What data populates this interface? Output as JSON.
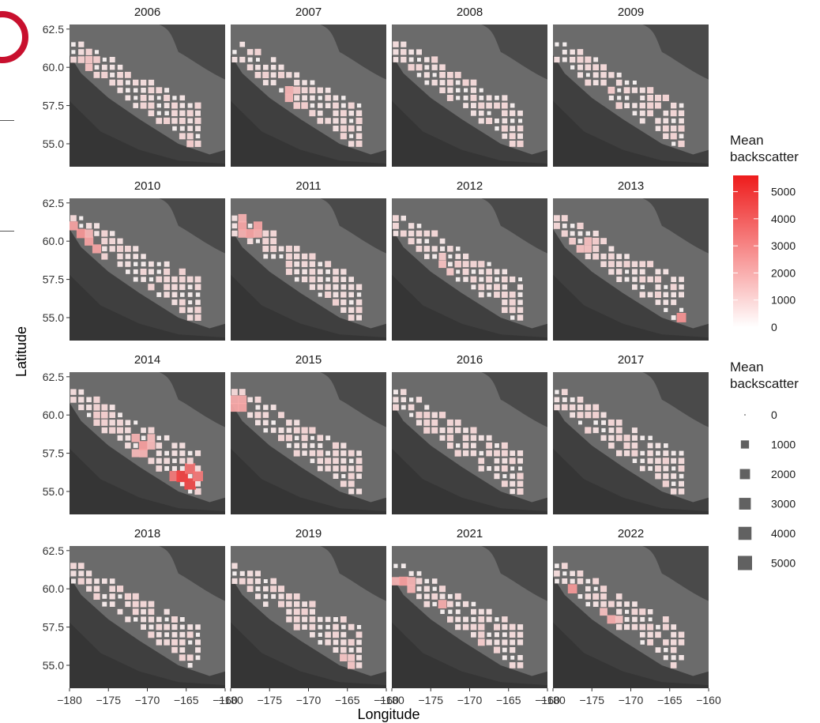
{
  "chart_data": {
    "type": "heatmap",
    "facet_by": "year",
    "panels": [
      "2006",
      "2007",
      "2008",
      "2009",
      "2010",
      "2011",
      "2012",
      "2013",
      "2014",
      "2015",
      "2016",
      "2017",
      "2018",
      "2019",
      "2021",
      "2022"
    ],
    "xlabel": "Longitude",
    "ylabel": "Latitude",
    "xlim": [
      -180,
      -160
    ],
    "ylim": [
      53.5,
      62.8
    ],
    "x_ticks": [
      -180,
      -175,
      -170,
      -165,
      -160
    ],
    "y_ticks": [
      55.0,
      57.5,
      60.0,
      62.5
    ],
    "x_tick_labels": [
      "−180",
      "−175",
      "−170",
      "−165",
      "−160"
    ],
    "y_tick_labels": [
      "55.0",
      "57.5",
      "60.0",
      "62.5"
    ],
    "panel_background": "#6b6b6b",
    "legends": [
      {
        "title": "Mean\nbackscatter",
        "type": "color",
        "color_low": "#ffffff",
        "color_high": "#ee1c1c",
        "range": [
          0,
          5600
        ],
        "ticks": [
          5000,
          4000,
          3000,
          2000,
          1000,
          0
        ],
        "tick_labels": [
          "5000",
          "4000",
          "3000",
          "2000",
          "1000",
          "0"
        ]
      },
      {
        "title": "Mean\nbackscatter",
        "type": "size",
        "fill": "#616161",
        "breaks": [
          0,
          1000,
          2000,
          3000,
          4000,
          5000
        ],
        "labels": [
          "0",
          "1000",
          "2000",
          "3000",
          "4000",
          "5000"
        ]
      }
    ],
    "hotspots": [
      {
        "panel": "2006",
        "lon": -177.5,
        "lat": 60.2,
        "value": 1500
      },
      {
        "panel": "2006",
        "lon": -164.8,
        "lat": 54.8,
        "value": 1300
      },
      {
        "panel": "2007",
        "lon": -178.5,
        "lat": 59.3,
        "value": 3800
      },
      {
        "panel": "2007",
        "lon": -173.0,
        "lat": 58.3,
        "value": 2200
      },
      {
        "panel": "2007",
        "lon": -171.0,
        "lat": 57.0,
        "value": 1400
      },
      {
        "panel": "2008",
        "lon": -177.5,
        "lat": 59.8,
        "value": 1000
      },
      {
        "panel": "2009",
        "lon": -172.5,
        "lat": 58.0,
        "value": 1500
      },
      {
        "panel": "2010",
        "lon": -179.0,
        "lat": 60.6,
        "value": 3000
      },
      {
        "panel": "2010",
        "lon": -177.8,
        "lat": 59.3,
        "value": 3500
      },
      {
        "panel": "2011",
        "lon": -177.5,
        "lat": 61.0,
        "value": 3000
      },
      {
        "panel": "2011",
        "lon": -173.5,
        "lat": 58.5,
        "value": 1300
      },
      {
        "panel": "2012",
        "lon": -173.0,
        "lat": 58.5,
        "value": 1700
      },
      {
        "panel": "2013",
        "lon": -176.0,
        "lat": 59.8,
        "value": 1800
      },
      {
        "panel": "2013",
        "lon": -163.5,
        "lat": 55.3,
        "value": 3100
      },
      {
        "panel": "2014",
        "lon": -176.0,
        "lat": 59.9,
        "value": 1200
      },
      {
        "panel": "2014",
        "lon": -170.8,
        "lat": 58.1,
        "value": 2600
      },
      {
        "panel": "2014",
        "lon": -165.0,
        "lat": 55.8,
        "value": 5600
      },
      {
        "panel": "2015",
        "lon": -179.0,
        "lat": 60.7,
        "value": 2600
      },
      {
        "panel": "2015",
        "lon": -174.0,
        "lat": 57.7,
        "value": 1300
      },
      {
        "panel": "2016",
        "lon": -170.0,
        "lat": 57.0,
        "value": 900
      },
      {
        "panel": "2017",
        "lon": -176.5,
        "lat": 58.7,
        "value": 1300
      },
      {
        "panel": "2018",
        "lon": -176.5,
        "lat": 59.5,
        "value": 900
      },
      {
        "panel": "2019",
        "lon": -165.5,
        "lat": 55.0,
        "value": 1800
      },
      {
        "panel": "2021",
        "lon": -178.5,
        "lat": 60.3,
        "value": 2600
      },
      {
        "panel": "2021",
        "lon": -174.0,
        "lat": 58.5,
        "value": 2800
      },
      {
        "panel": "2021",
        "lon": -169.0,
        "lat": 55.8,
        "value": 1800
      },
      {
        "panel": "2022",
        "lon": -177.5,
        "lat": 59.8,
        "value": 2800
      },
      {
        "panel": "2022",
        "lon": -173.0,
        "lat": 57.8,
        "value": 2400
      }
    ]
  }
}
